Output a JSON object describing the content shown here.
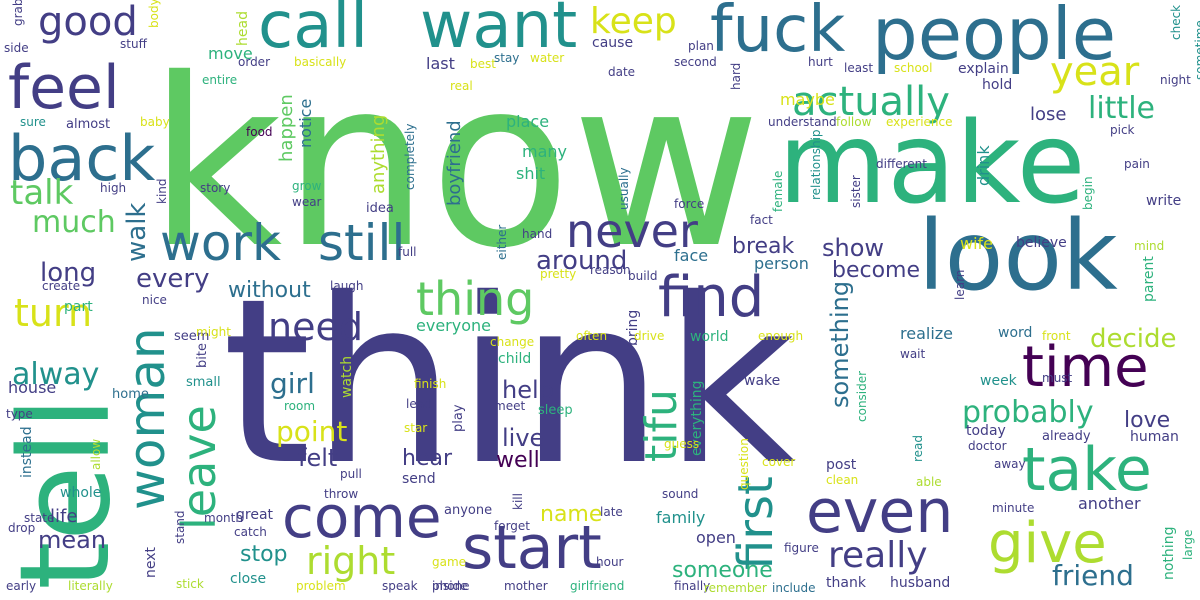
{
  "wordcloud": {
    "palette": {
      "purple": "#440154",
      "indigo": "#433e85",
      "blue": "#2d6f8e",
      "teal": "#21918c",
      "green": "#2db27d",
      "lime": "#5ec962",
      "yellowgreen": "#addc30",
      "yellow": "#d8e219"
    },
    "words": [
      {
        "text": "know",
        "color": "lime"
      },
      {
        "text": "think",
        "color": "indigo"
      },
      {
        "text": "tell",
        "color": "green"
      },
      {
        "text": "make",
        "color": "green"
      },
      {
        "text": "look",
        "color": "blue"
      },
      {
        "text": "people",
        "color": "blue"
      },
      {
        "text": "fuck",
        "color": "blue"
      },
      {
        "text": "want",
        "color": "teal"
      },
      {
        "text": "call",
        "color": "teal"
      },
      {
        "text": "feel",
        "color": "indigo"
      },
      {
        "text": "back",
        "color": "blue"
      },
      {
        "text": "good",
        "color": "indigo"
      },
      {
        "text": "keep",
        "color": "yellow"
      },
      {
        "text": "year",
        "color": "yellow"
      },
      {
        "text": "time",
        "color": "purple"
      },
      {
        "text": "take",
        "color": "green"
      },
      {
        "text": "give",
        "color": "yellowgreen"
      },
      {
        "text": "even",
        "color": "indigo"
      },
      {
        "text": "start",
        "color": "indigo"
      },
      {
        "text": "come",
        "color": "indigo"
      },
      {
        "text": "find",
        "color": "indigo"
      },
      {
        "text": "first",
        "color": "teal"
      },
      {
        "text": "woman",
        "color": "teal"
      },
      {
        "text": "leave",
        "color": "green"
      },
      {
        "text": "work",
        "color": "blue"
      },
      {
        "text": "still",
        "color": "blue"
      },
      {
        "text": "thing",
        "color": "lime"
      },
      {
        "text": "never",
        "color": "indigo"
      },
      {
        "text": "actually",
        "color": "green"
      },
      {
        "text": "little",
        "color": "green"
      },
      {
        "text": "talk",
        "color": "lime"
      },
      {
        "text": "much",
        "color": "lime"
      },
      {
        "text": "need",
        "color": "indigo"
      },
      {
        "text": "turn",
        "color": "yellow"
      },
      {
        "text": "right",
        "color": "yellowgreen"
      },
      {
        "text": "really",
        "color": "indigo"
      },
      {
        "text": "tifu",
        "color": "green"
      },
      {
        "text": "something",
        "color": "blue"
      },
      {
        "text": "probably",
        "color": "green"
      },
      {
        "text": "decide",
        "color": "yellowgreen"
      },
      {
        "text": "friend",
        "color": "blue"
      },
      {
        "text": "around",
        "color": "indigo"
      },
      {
        "text": "long",
        "color": "indigo"
      },
      {
        "text": "every",
        "color": "indigo"
      },
      {
        "text": "walk",
        "color": "blue"
      },
      {
        "text": "without",
        "color": "blue"
      },
      {
        "text": "break",
        "color": "indigo"
      },
      {
        "text": "show",
        "color": "indigo"
      },
      {
        "text": "become",
        "color": "indigo"
      },
      {
        "text": "alway",
        "color": "teal"
      },
      {
        "text": "girl",
        "color": "blue"
      },
      {
        "text": "point",
        "color": "yellow"
      },
      {
        "text": "felt",
        "color": "indigo"
      },
      {
        "text": "help",
        "color": "indigo"
      },
      {
        "text": "live",
        "color": "indigo"
      },
      {
        "text": "hear",
        "color": "indigo"
      },
      {
        "text": "well",
        "color": "purple"
      },
      {
        "text": "love",
        "color": "indigo"
      },
      {
        "text": "lose",
        "color": "indigo"
      },
      {
        "text": "name",
        "color": "yellow"
      },
      {
        "text": "mean",
        "color": "indigo"
      },
      {
        "text": "stop",
        "color": "teal"
      },
      {
        "text": "someone",
        "color": "green"
      },
      {
        "text": "life",
        "color": "indigo"
      },
      {
        "text": "maybe",
        "color": "yellow"
      },
      {
        "text": "place",
        "color": "green"
      },
      {
        "text": "many",
        "color": "green"
      },
      {
        "text": "shit",
        "color": "green"
      },
      {
        "text": "boyfriend",
        "color": "blue"
      },
      {
        "text": "anything",
        "color": "yellowgreen"
      },
      {
        "text": "happen",
        "color": "lime"
      },
      {
        "text": "notice",
        "color": "blue"
      },
      {
        "text": "face",
        "color": "blue"
      },
      {
        "text": "person",
        "color": "blue"
      },
      {
        "text": "wife",
        "color": "yellow"
      },
      {
        "text": "believe",
        "color": "indigo"
      },
      {
        "text": "parent",
        "color": "green"
      },
      {
        "text": "realize",
        "color": "blue"
      },
      {
        "text": "word",
        "color": "blue"
      },
      {
        "text": "watch",
        "color": "yellowgreen"
      },
      {
        "text": "everyone",
        "color": "green"
      },
      {
        "text": "cause",
        "color": "indigo"
      },
      {
        "text": "part",
        "color": "green"
      },
      {
        "text": "last",
        "color": "indigo"
      },
      {
        "text": "explain",
        "color": "indigo"
      },
      {
        "text": "hold",
        "color": "indigo"
      },
      {
        "text": "move",
        "color": "green"
      },
      {
        "text": "head",
        "color": "yellowgreen"
      },
      {
        "text": "drink",
        "color": "teal"
      },
      {
        "text": "write",
        "color": "indigo"
      },
      {
        "text": "human",
        "color": "indigo"
      },
      {
        "text": "today",
        "color": "indigo"
      },
      {
        "text": "already",
        "color": "indigo"
      },
      {
        "text": "family",
        "color": "teal"
      },
      {
        "text": "open",
        "color": "indigo"
      },
      {
        "text": "close",
        "color": "teal"
      },
      {
        "text": "thank",
        "color": "indigo"
      },
      {
        "text": "husband",
        "color": "indigo"
      },
      {
        "text": "another",
        "color": "indigo"
      },
      {
        "text": "house",
        "color": "indigo"
      },
      {
        "text": "home",
        "color": "blue"
      },
      {
        "text": "great",
        "color": "indigo"
      },
      {
        "text": "catch",
        "color": "indigo"
      },
      {
        "text": "next",
        "color": "indigo"
      },
      {
        "text": "instead",
        "color": "blue"
      },
      {
        "text": "whole",
        "color": "teal"
      },
      {
        "text": "month",
        "color": "indigo"
      },
      {
        "text": "idea",
        "color": "indigo"
      },
      {
        "text": "story",
        "color": "indigo"
      },
      {
        "text": "kind",
        "color": "indigo"
      },
      {
        "text": "almost",
        "color": "indigo"
      },
      {
        "text": "seem",
        "color": "indigo"
      },
      {
        "text": "bite",
        "color": "indigo"
      },
      {
        "text": "small",
        "color": "teal"
      },
      {
        "text": "send",
        "color": "indigo"
      },
      {
        "text": "child",
        "color": "green"
      },
      {
        "text": "change",
        "color": "yellow"
      },
      {
        "text": "bring",
        "color": "indigo"
      },
      {
        "text": "world",
        "color": "green"
      },
      {
        "text": "everything",
        "color": "green"
      },
      {
        "text": "wake",
        "color": "indigo"
      },
      {
        "text": "week",
        "color": "teal"
      },
      {
        "text": "post",
        "color": "indigo"
      },
      {
        "text": "sleep",
        "color": "green"
      },
      {
        "text": "meet",
        "color": "indigo"
      },
      {
        "text": "play",
        "color": "indigo"
      },
      {
        "text": "kill",
        "color": "indigo"
      },
      {
        "text": "anyone",
        "color": "indigo"
      },
      {
        "text": "hand",
        "color": "indigo"
      },
      {
        "text": "consider",
        "color": "green"
      },
      {
        "text": "nothing",
        "color": "green"
      },
      {
        "text": "figure",
        "color": "indigo"
      },
      {
        "text": "minute",
        "color": "indigo"
      },
      {
        "text": "away",
        "color": "indigo"
      },
      {
        "text": "doctor",
        "color": "indigo"
      },
      {
        "text": "wait",
        "color": "indigo"
      },
      {
        "text": "must",
        "color": "indigo"
      },
      {
        "text": "hurt",
        "color": "indigo"
      },
      {
        "text": "least",
        "color": "indigo"
      },
      {
        "text": "school",
        "color": "yellow"
      },
      {
        "text": "different",
        "color": "indigo"
      },
      {
        "text": "understand",
        "color": "indigo"
      },
      {
        "text": "follow",
        "color": "yellowgreen"
      },
      {
        "text": "experience",
        "color": "yellow"
      },
      {
        "text": "night",
        "color": "indigo"
      },
      {
        "text": "sometime",
        "color": "teal"
      },
      {
        "text": "check",
        "color": "teal"
      },
      {
        "text": "pick",
        "color": "indigo"
      },
      {
        "text": "pain",
        "color": "indigo"
      },
      {
        "text": "begin",
        "color": "green"
      },
      {
        "text": "mind",
        "color": "yellowgreen"
      },
      {
        "text": "learn",
        "color": "indigo"
      },
      {
        "text": "front",
        "color": "yellow"
      },
      {
        "text": "sister",
        "color": "indigo"
      },
      {
        "text": "relationship",
        "color": "teal"
      },
      {
        "text": "female",
        "color": "green"
      },
      {
        "text": "fact",
        "color": "indigo"
      },
      {
        "text": "force",
        "color": "indigo"
      },
      {
        "text": "usually",
        "color": "blue"
      },
      {
        "text": "full",
        "color": "indigo"
      },
      {
        "text": "either",
        "color": "blue"
      },
      {
        "text": "pretty",
        "color": "yellow"
      },
      {
        "text": "reason",
        "color": "indigo"
      },
      {
        "text": "build",
        "color": "indigo"
      },
      {
        "text": "often",
        "color": "yellow"
      },
      {
        "text": "drive",
        "color": "yellow"
      },
      {
        "text": "enough",
        "color": "yellow"
      },
      {
        "text": "guess",
        "color": "yellow"
      },
      {
        "text": "sound",
        "color": "indigo"
      },
      {
        "text": "cover",
        "color": "yellow"
      },
      {
        "text": "clean",
        "color": "yellow"
      },
      {
        "text": "read",
        "color": "teal"
      },
      {
        "text": "able",
        "color": "yellowgreen"
      },
      {
        "text": "question",
        "color": "yellow"
      },
      {
        "text": "late",
        "color": "indigo"
      },
      {
        "text": "forget",
        "color": "indigo"
      },
      {
        "text": "hour",
        "color": "indigo"
      },
      {
        "text": "game",
        "color": "yellow"
      },
      {
        "text": "inside",
        "color": "indigo"
      },
      {
        "text": "mother",
        "color": "indigo"
      },
      {
        "text": "girlfriend",
        "color": "green"
      },
      {
        "text": "finally",
        "color": "indigo"
      },
      {
        "text": "remember",
        "color": "yellowgreen"
      },
      {
        "text": "include",
        "color": "blue"
      },
      {
        "text": "speak",
        "color": "indigo"
      },
      {
        "text": "phone",
        "color": "indigo"
      },
      {
        "text": "problem",
        "color": "yellow"
      },
      {
        "text": "stick",
        "color": "yellowgreen"
      },
      {
        "text": "literally",
        "color": "yellowgreen"
      },
      {
        "text": "early",
        "color": "indigo"
      },
      {
        "text": "drop",
        "color": "indigo"
      },
      {
        "text": "state",
        "color": "indigo"
      },
      {
        "text": "allow",
        "color": "yellowgreen"
      },
      {
        "text": "type",
        "color": "indigo"
      },
      {
        "text": "throw",
        "color": "indigo"
      },
      {
        "text": "pull",
        "color": "indigo"
      },
      {
        "text": "stand",
        "color": "indigo"
      },
      {
        "text": "room",
        "color": "green"
      },
      {
        "text": "finish",
        "color": "yellow"
      },
      {
        "text": "lead",
        "color": "indigo"
      },
      {
        "text": "star",
        "color": "yellow"
      },
      {
        "text": "might",
        "color": "yellow"
      },
      {
        "text": "nice",
        "color": "indigo"
      },
      {
        "text": "create",
        "color": "indigo"
      },
      {
        "text": "laugh",
        "color": "indigo"
      },
      {
        "text": "completely",
        "color": "blue"
      },
      {
        "text": "grow",
        "color": "green"
      },
      {
        "text": "wear",
        "color": "indigo"
      },
      {
        "text": "food",
        "color": "purple"
      },
      {
        "text": "baby",
        "color": "yellow"
      },
      {
        "text": "sure",
        "color": "teal"
      },
      {
        "text": "high",
        "color": "indigo"
      },
      {
        "text": "real",
        "color": "yellow"
      },
      {
        "text": "best",
        "color": "yellow"
      },
      {
        "text": "stay",
        "color": "blue"
      },
      {
        "text": "water",
        "color": "yellow"
      },
      {
        "text": "date",
        "color": "indigo"
      },
      {
        "text": "second",
        "color": "indigo"
      },
      {
        "text": "plan",
        "color": "indigo"
      },
      {
        "text": "hard",
        "color": "indigo"
      },
      {
        "text": "order",
        "color": "indigo"
      },
      {
        "text": "basically",
        "color": "yellow"
      },
      {
        "text": "entire",
        "color": "green"
      },
      {
        "text": "stuff",
        "color": "indigo"
      },
      {
        "text": "body",
        "color": "yellow"
      },
      {
        "text": "grab",
        "color": "indigo"
      },
      {
        "text": "side",
        "color": "indigo"
      },
      {
        "text": "large",
        "color": "green"
      }
    ]
  }
}
